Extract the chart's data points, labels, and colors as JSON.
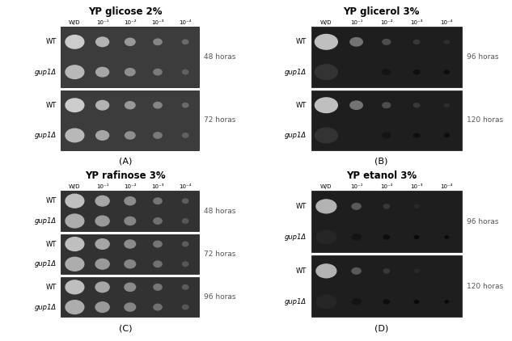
{
  "panels_order": [
    "A",
    "B",
    "C",
    "D"
  ],
  "panels": {
    "A": {
      "title": "YP glicose 2%",
      "label": "(A)",
      "timepoints": [
        "48 horas",
        "72 horas"
      ],
      "n_timepoints": 2,
      "plate_color": "#3c3c3c"
    },
    "B": {
      "title": "YP glicerol 3%",
      "label": "(B)",
      "timepoints": [
        "96 horas",
        "120 horas"
      ],
      "n_timepoints": 2,
      "plate_color": "#1e1e1e"
    },
    "C": {
      "title": "YP rafinose 3%",
      "label": "(C)",
      "timepoints": [
        "48 horas",
        "72 horas",
        "96 horas"
      ],
      "n_timepoints": 3,
      "plate_color": "#323232"
    },
    "D": {
      "title": "YP etanol 3%",
      "label": "(D)",
      "timepoints": [
        "96 horas",
        "120 horas"
      ],
      "n_timepoints": 2,
      "plate_color": "#1e1e1e"
    }
  },
  "dilutions": [
    "W/D",
    "10⁻¹",
    "10⁻²",
    "10⁻³",
    "10⁻⁴"
  ],
  "row_label_normal": "WT",
  "row_label_italic": "gup1Δ",
  "bg_color": "#ffffff",
  "title_fontsize": 8.5,
  "label_fontsize": 8,
  "dil_fontsize": 5,
  "rowlabel_fontsize": 6,
  "time_fontsize": 6.5,
  "panels_pos": {
    "A": [
      0.02,
      0.5,
      0.45,
      0.49
    ],
    "B": [
      0.5,
      0.5,
      0.49,
      0.49
    ],
    "C": [
      0.02,
      0.01,
      0.45,
      0.5
    ],
    "D": [
      0.5,
      0.01,
      0.49,
      0.5
    ]
  },
  "spots_A": {
    "sizes": [
      0.04,
      0.028,
      0.022,
      0.018,
      0.013
    ],
    "colors_wt": [
      0.8,
      0.7,
      0.6,
      0.52,
      0.42
    ],
    "colors_gup": [
      0.72,
      0.65,
      0.56,
      0.48,
      0.38
    ]
  },
  "spots_B": {
    "sizes": [
      0.045,
      0.025,
      0.016,
      0.012,
      0.01
    ],
    "colors_wt": [
      0.75,
      0.45,
      0.3,
      0.22,
      0.18
    ],
    "colors_gup": [
      0.2,
      0.12,
      0.08,
      0.06,
      0.05
    ]
  },
  "spots_C": {
    "sizes": [
      0.04,
      0.03,
      0.024,
      0.018,
      0.013
    ],
    "colors_wt": [
      0.75,
      0.65,
      0.55,
      0.46,
      0.36
    ],
    "colors_gup": [
      0.68,
      0.6,
      0.52,
      0.44,
      0.34
    ]
  },
  "spots_D": {
    "sizes": [
      0.04,
      0.018,
      0.012,
      0.009,
      0.007
    ],
    "colors_wt": [
      0.7,
      0.35,
      0.22,
      0.16,
      0.12
    ],
    "colors_gup": [
      0.15,
      0.08,
      0.05,
      0.04,
      0.03
    ]
  }
}
